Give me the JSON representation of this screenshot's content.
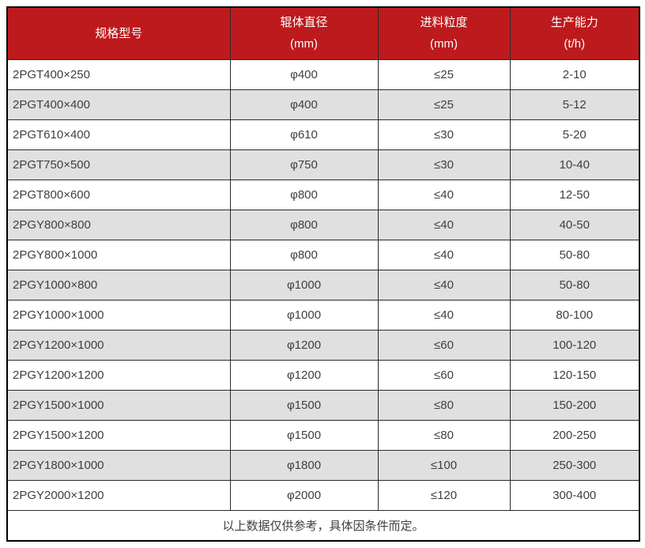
{
  "chart_data": {
    "type": "table",
    "columns": [
      {
        "title": "规格型号",
        "unit": ""
      },
      {
        "title": "辊体直径",
        "unit": "(mm)"
      },
      {
        "title": "进料粒度",
        "unit": "(mm)"
      },
      {
        "title": "生产能力",
        "unit": "(t/h)"
      }
    ],
    "rows": [
      [
        "2PGT400×250",
        "φ400",
        "≤25",
        "2-10"
      ],
      [
        "2PGT400×400",
        "φ400",
        "≤25",
        "5-12"
      ],
      [
        "2PGT610×400",
        "φ610",
        "≤30",
        "5-20"
      ],
      [
        "2PGT750×500",
        "φ750",
        "≤30",
        "10-40"
      ],
      [
        "2PGT800×600",
        "φ800",
        "≤40",
        "12-50"
      ],
      [
        "2PGY800×800",
        "φ800",
        "≤40",
        "40-50"
      ],
      [
        "2PGY800×1000",
        "φ800",
        "≤40",
        "50-80"
      ],
      [
        "2PGY1000×800",
        "φ1000",
        "≤40",
        "50-80"
      ],
      [
        "2PGY1000×1000",
        "φ1000",
        "≤40",
        "80-100"
      ],
      [
        "2PGY1200×1000",
        "φ1200",
        "≤60",
        "100-120"
      ],
      [
        "2PGY1200×1200",
        "φ1200",
        "≤60",
        "120-150"
      ],
      [
        "2PGY1500×1000",
        "φ1500",
        "≤80",
        "150-200"
      ],
      [
        "2PGY1500×1200",
        "φ1500",
        "≤80",
        "200-250"
      ],
      [
        "2PGY1800×1000",
        "φ1800",
        "≤100",
        "250-300"
      ],
      [
        "2PGY2000×1200",
        "φ2000",
        "≤120",
        "300-400"
      ]
    ],
    "footnote": "以上数据仅供参考，具体因条件而定。"
  },
  "colors": {
    "header_bg": "#bd1a1e",
    "header_text": "#ffffff",
    "row_bg": "#ffffff",
    "row_alt_bg": "#e0e0e0",
    "border_inner": "#2b2b2b",
    "border_outer": "#000000",
    "text": "#3f3f3f"
  }
}
